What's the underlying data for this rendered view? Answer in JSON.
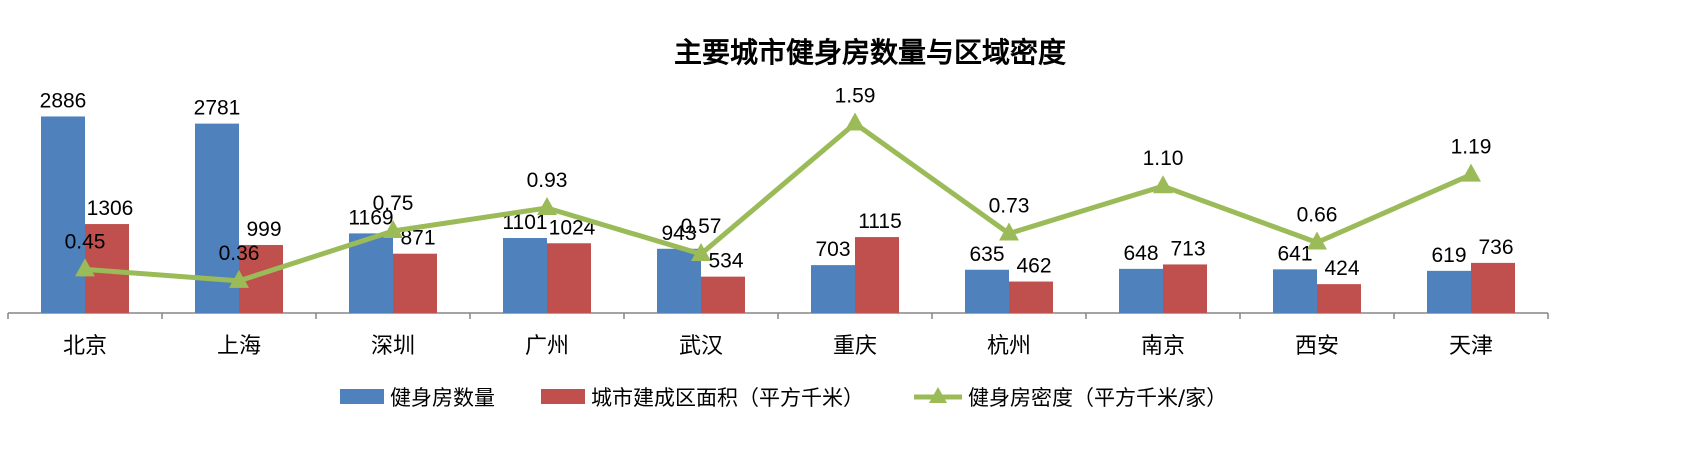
{
  "chart_data": {
    "type": "bar",
    "title": "主要城市健身房数量与区域密度",
    "categories": [
      "北京",
      "上海",
      "深圳",
      "广州",
      "武汉",
      "重庆",
      "杭州",
      "南京",
      "西安",
      "天津"
    ],
    "series": [
      {
        "name": "健身房数量",
        "type": "bar",
        "color": "#4F81BD",
        "values": [
          2886,
          2781,
          1169,
          1101,
          943,
          703,
          635,
          648,
          641,
          619
        ]
      },
      {
        "name": "城市建成区面积（平方千米）",
        "type": "bar",
        "color": "#C0504D",
        "values": [
          1306,
          999,
          871,
          1024,
          534,
          1115,
          462,
          713,
          424,
          736
        ]
      },
      {
        "name": "健身房密度（平方千米/家）",
        "type": "line",
        "color": "#9BBB59",
        "marker": "triangle",
        "values": [
          0.45,
          0.36,
          0.75,
          0.93,
          0.57,
          1.59,
          0.73,
          1.1,
          0.66,
          1.19
        ],
        "labels": [
          "0.45",
          "0.36",
          "0.75",
          "0.93",
          "0.57",
          "1.59",
          "0.73",
          "1.10",
          "0.66",
          "1.19"
        ]
      }
    ],
    "legend": "bottom",
    "grid": false
  }
}
